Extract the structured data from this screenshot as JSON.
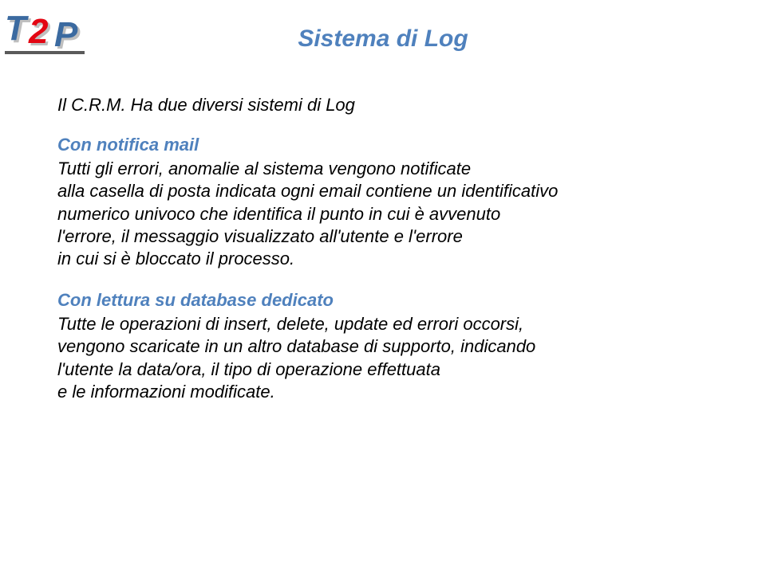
{
  "title": "Sistema di Log",
  "title_color": "#4f81bd",
  "subtitle": "Il C.R.M. Ha due diversi sistemi di Log",
  "section1": {
    "heading": "Con notifica mail",
    "heading_color": "#4f81bd",
    "body": "Tutti gli errori, anomalie al sistema vengono notificate\nalla casella di posta indicata ogni email contiene un identificativo\nnumerico univoco che identifica il punto in cui è avvenuto\nl'errore, il messaggio visualizzato  all'utente e l'errore\nin cui si è bloccato il processo."
  },
  "section2": {
    "heading": "Con lettura su database dedicato",
    "heading_color": "#4f81bd",
    "body": "Tutte le operazioni di insert, delete, update ed errori occorsi,\n vengono scaricate in un altro database di supporto, indicando\n l'utente la data/ora, il tipo di operazione effettuata\ne le informazioni modificate."
  },
  "logo": {
    "t_color": "#3b6aa0",
    "two_color": "#e30613",
    "p_color": "#3b6aa0",
    "shadow": "#bfbfbf",
    "underline": "#5a5a5a"
  }
}
